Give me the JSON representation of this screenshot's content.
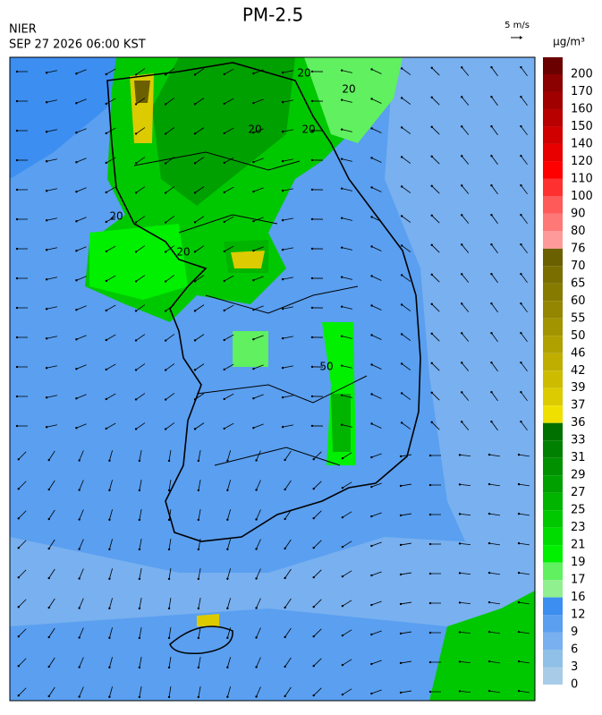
{
  "header": {
    "source": "NIER",
    "datetime": "SEP 27 2026 06:00 KST",
    "title": "PM-2.5",
    "wind_scale": "5 m/s"
  },
  "colorbar": {
    "unit": "µg/m³",
    "labels": [
      "200",
      "170",
      "160",
      "150",
      "140",
      "120",
      "110",
      "100",
      "90",
      "80",
      "76",
      "70",
      "65",
      "60",
      "55",
      "50",
      "46",
      "42",
      "39",
      "37",
      "36",
      "33",
      "31",
      "29",
      "27",
      "25",
      "23",
      "21",
      "19",
      "17",
      "16",
      "12",
      "9",
      "6",
      "3",
      "0"
    ],
    "colors": [
      "#6b0000",
      "#8b0000",
      "#a00000",
      "#b80000",
      "#d00000",
      "#e80000",
      "#ff0000",
      "#ff3030",
      "#ff5a5a",
      "#ff7878",
      "#ff9a9a",
      "#6b6000",
      "#7a6e00",
      "#877a00",
      "#948600",
      "#a29300",
      "#b0a000",
      "#bfae00",
      "#cdbb00",
      "#dccb00",
      "#f0e000",
      "#007000",
      "#008000",
      "#009000",
      "#00a000",
      "#00b400",
      "#00c800",
      "#00dc00",
      "#00f000",
      "#60f060",
      "#90f090",
      "#3c8ef0",
      "#5a9ff0",
      "#78b0f0",
      "#90c0e8",
      "#a8cce8"
    ]
  },
  "map": {
    "contour_labels": [
      "20",
      "20",
      "20",
      "20",
      "20",
      "20",
      "50"
    ]
  }
}
